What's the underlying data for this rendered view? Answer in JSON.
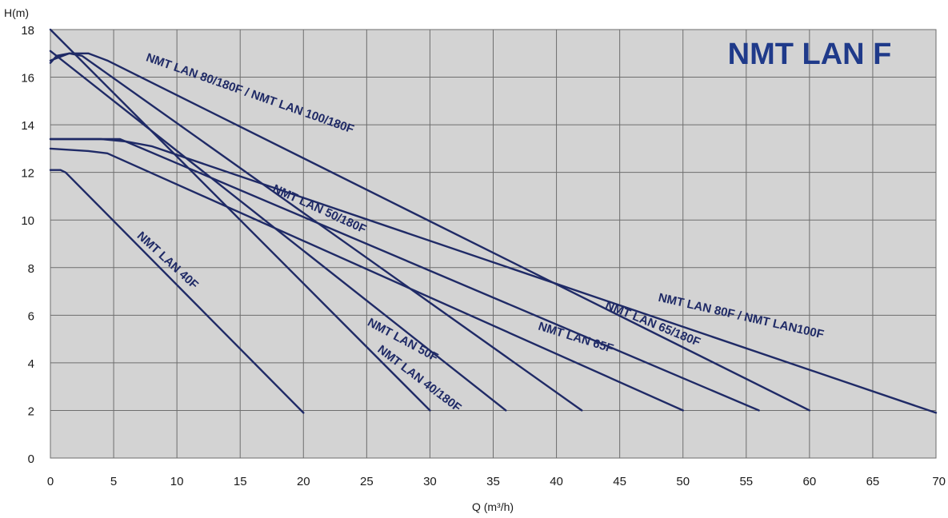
{
  "chart_data": {
    "type": "line",
    "title": "NMT LAN F",
    "xlabel": "Q (m³/h)",
    "ylabel": "H(m)",
    "xlim": [
      0,
      70
    ],
    "ylim": [
      0,
      18
    ],
    "x_ticks": [
      "0",
      "5",
      "10",
      "15",
      "20",
      "25",
      "30",
      "35",
      "40",
      "45",
      "50",
      "55",
      "60",
      "65",
      "70"
    ],
    "y_ticks": [
      "0",
      "2",
      "4",
      "6",
      "8",
      "10",
      "12",
      "14",
      "16",
      "18"
    ],
    "grid": true,
    "colors": {
      "plot_background": "#d3d3d3",
      "grid": "#6e6e6e",
      "curve": "#1f2a66",
      "label": "#1f2a66",
      "title": "#1f3a8a"
    },
    "series": [
      {
        "name": "NMT LAN 40F",
        "points": [
          [
            0,
            12.1
          ],
          [
            0.8,
            12.1
          ],
          [
            1.2,
            12.0
          ],
          [
            20,
            1.9
          ]
        ]
      },
      {
        "name": "NMT LAN 40/180F",
        "points": [
          [
            0,
            18.0
          ],
          [
            30,
            2.0
          ]
        ]
      },
      {
        "name": "NMT LAN 50F",
        "points": [
          [
            0,
            17.1
          ],
          [
            36,
            2.0
          ]
        ]
      },
      {
        "name": "NMT LAN 50/180F",
        "points": [
          [
            0,
            16.6
          ],
          [
            0.5,
            16.9
          ],
          [
            1.5,
            17.0
          ],
          [
            2.5,
            16.9
          ],
          [
            42,
            2.0
          ]
        ]
      },
      {
        "name": "NMT LAN 65F",
        "points": [
          [
            0,
            13.0
          ],
          [
            3,
            12.9
          ],
          [
            4.5,
            12.8
          ],
          [
            50,
            2.0
          ]
        ]
      },
      {
        "name": "NMT LAN 65/180F",
        "points": [
          [
            0,
            13.4
          ],
          [
            3,
            13.4
          ],
          [
            5.5,
            13.4
          ],
          [
            56,
            2.0
          ]
        ]
      },
      {
        "name": "NMT LAN 80/180F / NMT LAN 100/180F",
        "points": [
          [
            0,
            16.7
          ],
          [
            1.5,
            17.0
          ],
          [
            3,
            17.0
          ],
          [
            4.5,
            16.7
          ],
          [
            60,
            2.0
          ]
        ]
      },
      {
        "name": "NMT LAN 80F / NMT LAN100F",
        "points": [
          [
            0,
            13.4
          ],
          [
            4,
            13.4
          ],
          [
            6,
            13.3
          ],
          [
            8,
            13.1
          ],
          [
            70,
            1.9
          ]
        ]
      }
    ],
    "labels": [
      {
        "text": "NMT LAN 40F",
        "pos": [
          6.8,
          9.3
        ],
        "rotate": 42.7
      },
      {
        "text": "NMT LAN 40/180F",
        "pos": [
          25.8,
          4.5
        ],
        "rotate": 37.3
      },
      {
        "text": "NMT LAN 50F",
        "pos": [
          25,
          5.6
        ],
        "rotate": 28.3
      },
      {
        "text": "NMT LAN 50/180F",
        "pos": [
          17.5,
          11.2
        ],
        "rotate": 24.5
      },
      {
        "text": "NMT LAN 65F",
        "pos": [
          38.5,
          5.4
        ],
        "rotate": 17.3
      },
      {
        "text": "NMT LAN 65/180F",
        "pos": [
          43.8,
          6.3
        ],
        "rotate": 22.2
      },
      {
        "text": "NMT LAN 80/180F / NMT LAN 100/180F",
        "pos": [
          7.5,
          16.7
        ],
        "rotate": 19.4
      },
      {
        "text": "NMT LAN 80F / NMT LAN100F",
        "pos": [
          48,
          6.6
        ],
        "rotate": 12.8
      }
    ]
  }
}
